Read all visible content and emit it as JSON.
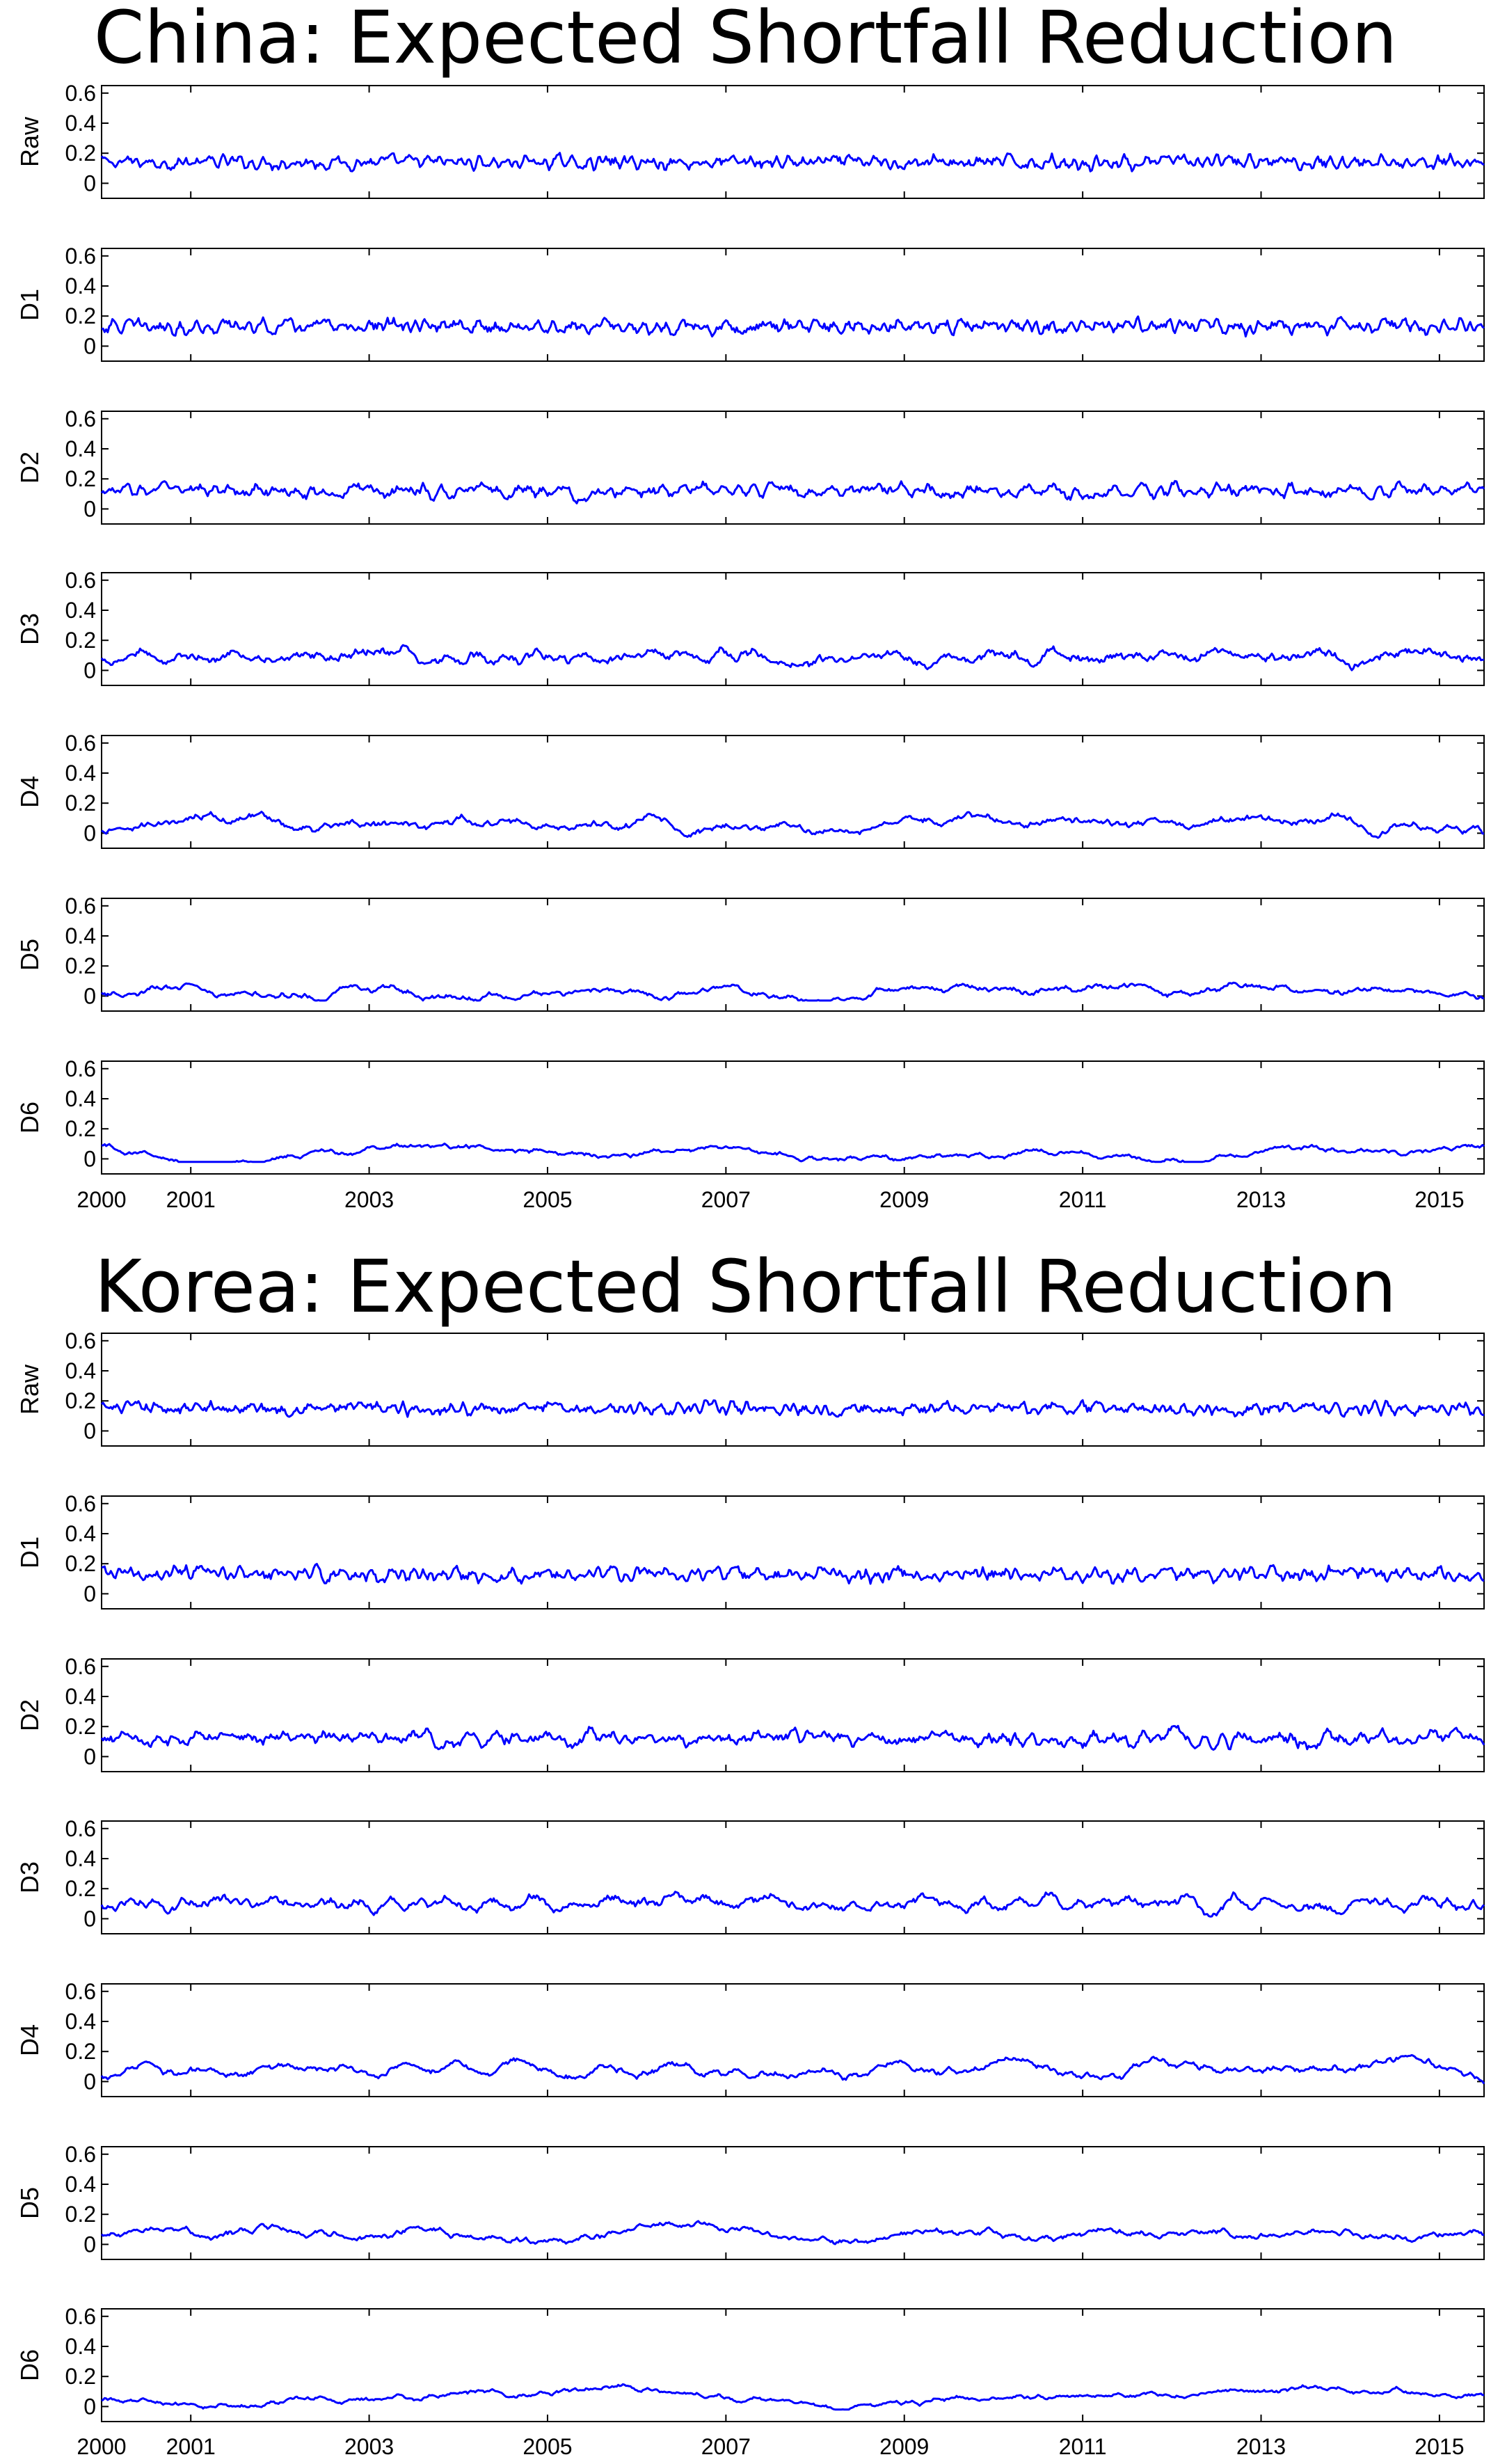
{
  "chart_data": [
    {
      "type": "line",
      "title": "China: Expected Shortfall Reduction",
      "x_range": [
        2000.0,
        2015.5
      ],
      "x_ticks": [
        2000,
        2001,
        2003,
        2005,
        2007,
        2009,
        2011,
        2013,
        2015
      ],
      "x_tick_labels": [
        "2000",
        "2001",
        "2003",
        "2005",
        "2007",
        "2009",
        "2011",
        "2013",
        "2015"
      ],
      "ylim": [
        -0.1,
        0.65
      ],
      "y_ticks": [
        0,
        0.2,
        0.4,
        0.6
      ],
      "y_tick_labels": [
        "0",
        "0.2",
        "0.4",
        "0.6"
      ],
      "line_color": "#0000ff",
      "grid": false,
      "series": [
        {
          "name": "Raw",
          "base": 0.14,
          "amp": 0.13,
          "smooth": 1,
          "floor": -0.06
        },
        {
          "name": "D1",
          "base": 0.13,
          "amp": 0.14,
          "smooth": 1,
          "floor": -0.06
        },
        {
          "name": "D2",
          "base": 0.12,
          "amp": 0.15,
          "smooth": 2,
          "floor": -0.06
        },
        {
          "name": "D3",
          "base": 0.09,
          "amp": 0.17,
          "smooth": 5,
          "floor": -0.05
        },
        {
          "name": "D4",
          "base": 0.06,
          "amp": 0.18,
          "smooth": 11,
          "floor": -0.04
        },
        {
          "name": "D5",
          "base": 0.04,
          "amp": 0.2,
          "smooth": 21,
          "floor": -0.03
        },
        {
          "name": "D6",
          "base": 0.03,
          "amp": 0.2,
          "smooth": 38,
          "floor": -0.02
        }
      ]
    },
    {
      "type": "line",
      "title": "Korea: Expected Shortfall Reduction",
      "x_range": [
        2000.0,
        2015.5
      ],
      "x_ticks": [
        2000,
        2001,
        2003,
        2005,
        2007,
        2009,
        2011,
        2013,
        2015
      ],
      "x_tick_labels": [
        "2000",
        "2001",
        "2003",
        "2005",
        "2007",
        "2009",
        "2011",
        "2013",
        "2015"
      ],
      "ylim": [
        -0.1,
        0.65
      ],
      "y_ticks": [
        0,
        0.2,
        0.4,
        0.6
      ],
      "y_tick_labels": [
        "0",
        "0.2",
        "0.4",
        "0.6"
      ],
      "line_color": "#0000ff",
      "grid": false,
      "series": [
        {
          "name": "Raw",
          "base": 0.15,
          "amp": 0.12,
          "smooth": 1,
          "floor": -0.06
        },
        {
          "name": "D1",
          "base": 0.13,
          "amp": 0.14,
          "smooth": 1,
          "floor": -0.06
        },
        {
          "name": "D2",
          "base": 0.12,
          "amp": 0.16,
          "smooth": 2,
          "floor": -0.06
        },
        {
          "name": "D3",
          "base": 0.1,
          "amp": 0.17,
          "smooth": 5,
          "floor": -0.05
        },
        {
          "name": "D4",
          "base": 0.08,
          "amp": 0.18,
          "smooth": 11,
          "floor": -0.04
        },
        {
          "name": "D5",
          "base": 0.07,
          "amp": 0.2,
          "smooth": 21,
          "floor": -0.03
        },
        {
          "name": "D6",
          "base": 0.06,
          "amp": 0.2,
          "smooth": 38,
          "floor": -0.02
        }
      ]
    }
  ]
}
